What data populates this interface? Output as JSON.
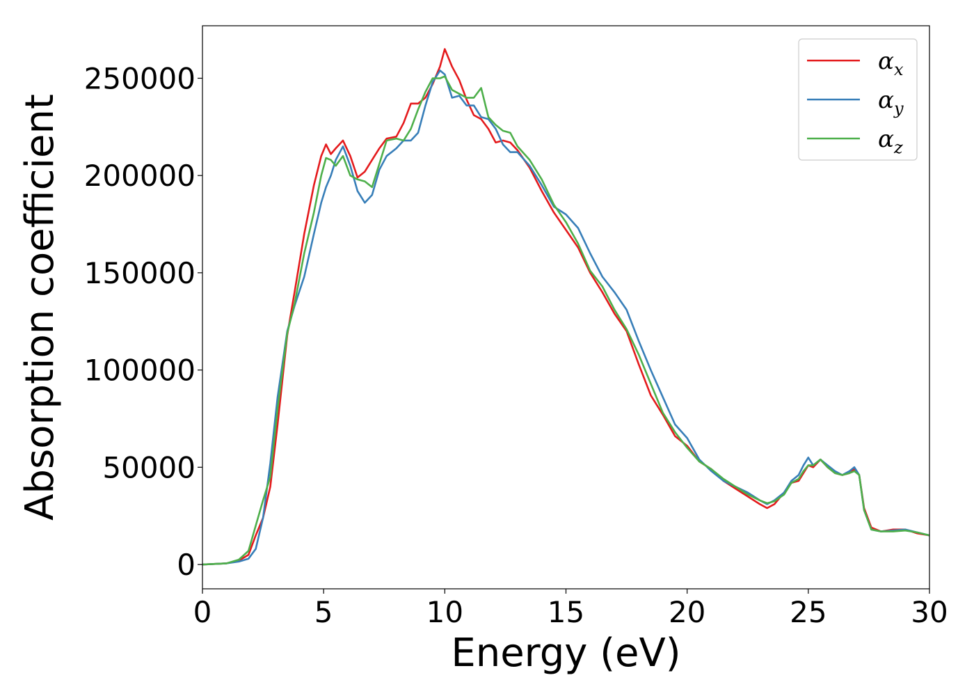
{
  "chart_data": {
    "type": "line",
    "title": "",
    "xlabel": "Energy (eV)",
    "ylabel": "Absorption coefficient",
    "xlim": [
      0,
      30
    ],
    "ylim": [
      -12500,
      277000
    ],
    "xticks": [
      0,
      5,
      10,
      15,
      20,
      25,
      30
    ],
    "yticks": [
      0,
      50000,
      100000,
      150000,
      200000,
      250000
    ],
    "grid": false,
    "legend_position": "top-right",
    "series": [
      {
        "name": "α",
        "subscript": "x",
        "color": "#e41a1c",
        "x": [
          0,
          1,
          1.5,
          1.9,
          2.2,
          2.5,
          2.8,
          3.1,
          3.5,
          3.8,
          4.2,
          4.6,
          4.9,
          5.1,
          5.3,
          5.5,
          5.8,
          6.1,
          6.4,
          6.7,
          7.0,
          7.3,
          7.6,
          8.0,
          8.3,
          8.6,
          8.9,
          9.2,
          9.5,
          9.8,
          10.0,
          10.3,
          10.6,
          10.9,
          11.2,
          11.5,
          11.8,
          12.1,
          12.4,
          12.7,
          13.0,
          13.5,
          14.0,
          14.5,
          15.0,
          15.5,
          16.0,
          16.5,
          17.0,
          17.5,
          18.0,
          18.5,
          19.0,
          19.5,
          20.0,
          20.5,
          21.0,
          21.5,
          22.0,
          22.5,
          23.0,
          23.3,
          23.6,
          24.0,
          24.3,
          24.6,
          24.8,
          25.0,
          25.2,
          25.5,
          25.8,
          26.1,
          26.4,
          26.7,
          26.9,
          27.1,
          27.3,
          27.6,
          28.0,
          28.5,
          29.0,
          29.5,
          30.0
        ],
        "values": [
          0,
          600,
          2000,
          5000,
          15000,
          24000,
          40000,
          72000,
          118000,
          140000,
          170000,
          195000,
          210000,
          216000,
          211000,
          214000,
          218000,
          210000,
          199000,
          202000,
          208000,
          214000,
          219000,
          220000,
          227000,
          237000,
          237000,
          240000,
          247000,
          256000,
          265000,
          256000,
          249000,
          239000,
          231000,
          229000,
          224000,
          217000,
          218000,
          217000,
          213000,
          204000,
          192000,
          181000,
          172000,
          163000,
          150000,
          140000,
          129000,
          120000,
          103000,
          87000,
          77000,
          66000,
          61000,
          53000,
          49000,
          43000,
          39000,
          35000,
          31000,
          29000,
          31000,
          37000,
          42000,
          43000,
          47000,
          51000,
          50000,
          54000,
          50000,
          47000,
          46000,
          47000,
          49000,
          46000,
          29000,
          19000,
          17000,
          18000,
          18000,
          16000,
          15000
        ]
      },
      {
        "name": "α",
        "subscript": "y",
        "color": "#377eb8",
        "x": [
          0,
          1,
          1.5,
          1.9,
          2.2,
          2.5,
          2.8,
          3.1,
          3.5,
          3.8,
          4.2,
          4.6,
          4.9,
          5.1,
          5.3,
          5.5,
          5.8,
          6.1,
          6.4,
          6.7,
          7.0,
          7.3,
          7.6,
          8.0,
          8.3,
          8.6,
          8.9,
          9.2,
          9.5,
          9.8,
          10.0,
          10.3,
          10.6,
          10.9,
          11.2,
          11.5,
          11.8,
          12.1,
          12.4,
          12.7,
          13.0,
          13.5,
          14.0,
          14.5,
          15.0,
          15.5,
          16.0,
          16.5,
          17.0,
          17.5,
          18.0,
          18.5,
          19.0,
          19.5,
          20.0,
          20.5,
          21.0,
          21.5,
          22.0,
          22.5,
          23.0,
          23.3,
          23.6,
          24.0,
          24.3,
          24.6,
          24.8,
          25.0,
          25.2,
          25.5,
          25.8,
          26.1,
          26.4,
          26.7,
          26.9,
          27.1,
          27.3,
          27.6,
          28.0,
          28.5,
          29.0,
          29.5,
          30.0
        ],
        "values": [
          0,
          600,
          1500,
          3000,
          8000,
          24000,
          52000,
          86000,
          120000,
          133000,
          148000,
          170000,
          186000,
          194000,
          200000,
          208000,
          215000,
          205000,
          192000,
          186000,
          190000,
          203000,
          210000,
          214000,
          218000,
          218000,
          222000,
          236000,
          248000,
          254000,
          252000,
          240000,
          241000,
          236000,
          236000,
          230000,
          229000,
          224000,
          216000,
          212000,
          212000,
          205000,
          195000,
          184000,
          180000,
          173000,
          160000,
          148000,
          140000,
          131000,
          115000,
          100000,
          86000,
          72000,
          65000,
          54000,
          48000,
          43000,
          40000,
          37000,
          33000,
          31000,
          33000,
          37000,
          43000,
          46000,
          51000,
          55000,
          51000,
          54000,
          51000,
          48000,
          46000,
          48000,
          50000,
          46000,
          28000,
          18000,
          17000,
          17500,
          18000,
          16500,
          15000
        ]
      },
      {
        "name": "α",
        "subscript": "z",
        "color": "#4daf4a",
        "x": [
          0,
          1,
          1.5,
          1.9,
          2.2,
          2.5,
          2.8,
          3.1,
          3.5,
          3.8,
          4.2,
          4.6,
          4.9,
          5.1,
          5.3,
          5.5,
          5.8,
          6.1,
          6.4,
          6.7,
          7.0,
          7.3,
          7.6,
          8.0,
          8.3,
          8.6,
          8.9,
          9.2,
          9.5,
          9.8,
          10.0,
          10.3,
          10.6,
          10.9,
          11.2,
          11.5,
          11.8,
          12.1,
          12.4,
          12.7,
          13.0,
          13.5,
          14.0,
          14.5,
          15.0,
          15.5,
          16.0,
          16.5,
          17.0,
          17.5,
          18.0,
          18.5,
          19.0,
          19.5,
          20.0,
          20.5,
          21.0,
          21.5,
          22.0,
          22.5,
          23.0,
          23.3,
          23.6,
          24.0,
          24.3,
          24.6,
          24.8,
          25.0,
          25.2,
          25.5,
          25.8,
          26.1,
          26.4,
          26.7,
          26.9,
          27.1,
          27.3,
          27.6,
          28.0,
          28.5,
          29.0,
          29.5,
          30.0
        ],
        "values": [
          0,
          600,
          2500,
          7000,
          20000,
          33000,
          45000,
          80000,
          119000,
          134000,
          160000,
          181000,
          200000,
          209000,
          208000,
          205000,
          210000,
          200000,
          198000,
          197000,
          194000,
          206000,
          218000,
          219000,
          218000,
          224000,
          234000,
          243000,
          250000,
          250000,
          251000,
          244000,
          242000,
          240000,
          240000,
          245000,
          230000,
          226000,
          223000,
          222000,
          215000,
          208000,
          198000,
          185000,
          176000,
          165000,
          151000,
          143000,
          131000,
          121000,
          108000,
          93000,
          78000,
          68000,
          60000,
          53000,
          49000,
          44000,
          40000,
          36000,
          33000,
          31500,
          32500,
          36000,
          42000,
          44000,
          48000,
          51000,
          51000,
          54000,
          50000,
          47000,
          46000,
          47000,
          48000,
          46000,
          28000,
          18000,
          17000,
          17000,
          17500,
          16500,
          15000
        ]
      }
    ]
  }
}
